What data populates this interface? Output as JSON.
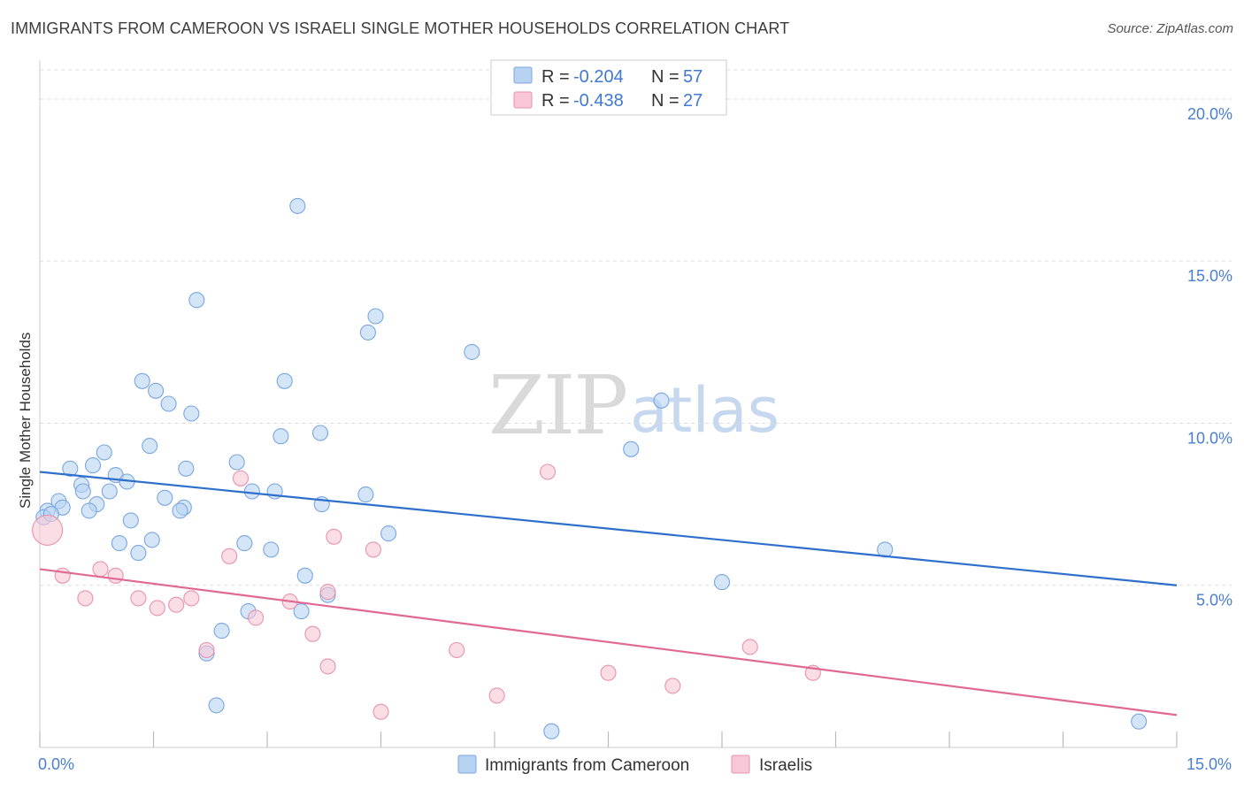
{
  "title": "IMMIGRANTS FROM CAMEROON VS ISRAELI SINGLE MOTHER HOUSEHOLDS CORRELATION CHART",
  "source": "Source: ZipAtlas.com",
  "watermark": {
    "part1": "ZIP",
    "part2": "atlas"
  },
  "legend": {
    "rows": [
      {
        "r_label": "R =",
        "r_value": "-0.204",
        "n_label": "N =",
        "n_value": "57"
      },
      {
        "r_label": "R =",
        "r_value": "-0.438",
        "n_label": "N =",
        "n_value": "27"
      }
    ]
  },
  "colors": {
    "blue_fill": "#b8d3f2",
    "blue_stroke": "#7aa6e0",
    "blue_line": "#2f6fcc",
    "pink_fill": "#f8c6d6",
    "pink_stroke": "#e693ae",
    "pink_line": "#e06893",
    "tick_text": "#4a7fd0",
    "grid": "#dddddd"
  },
  "chart_data": {
    "type": "scatter",
    "title": "IMMIGRANTS FROM CAMEROON VS ISRAELI SINGLE MOTHER HOUSEHOLDS CORRELATION CHART",
    "xlabel": "",
    "ylabel": "Single Mother Households",
    "x_ticks": [
      "0.0%",
      "15.0%"
    ],
    "y_ticks": [
      "5.0%",
      "10.0%",
      "15.0%",
      "20.0%"
    ],
    "xlim": [
      0,
      15
    ],
    "ylim": [
      0,
      20
    ],
    "grid": "horizontal dashed",
    "legend_position": "top-center",
    "series": [
      {
        "name": "Immigrants from Cameroon",
        "color": "#b8d3f2",
        "R": -0.204,
        "N": 57,
        "trend": {
          "x": [
            0,
            15
          ],
          "y": [
            8.5,
            5.0
          ]
        },
        "points": [
          [
            3.4,
            16.7
          ],
          [
            2.07,
            13.8
          ],
          [
            4.43,
            13.3
          ],
          [
            4.33,
            12.8
          ],
          [
            5.7,
            12.2
          ],
          [
            1.35,
            11.3
          ],
          [
            3.23,
            11.3
          ],
          [
            1.53,
            11.0
          ],
          [
            1.7,
            10.6
          ],
          [
            2.0,
            10.3
          ],
          [
            8.2,
            10.7
          ],
          [
            3.7,
            9.7
          ],
          [
            3.18,
            9.6
          ],
          [
            1.45,
            9.3
          ],
          [
            0.85,
            9.1
          ],
          [
            7.8,
            9.2
          ],
          [
            2.6,
            8.8
          ],
          [
            1.93,
            8.6
          ],
          [
            0.7,
            8.7
          ],
          [
            0.4,
            8.6
          ],
          [
            1.0,
            8.4
          ],
          [
            1.15,
            8.2
          ],
          [
            0.55,
            8.1
          ],
          [
            0.57,
            7.9
          ],
          [
            0.92,
            7.9
          ],
          [
            2.8,
            7.9
          ],
          [
            3.1,
            7.9
          ],
          [
            1.65,
            7.7
          ],
          [
            4.3,
            7.8
          ],
          [
            0.25,
            7.6
          ],
          [
            0.75,
            7.5
          ],
          [
            3.72,
            7.5
          ],
          [
            1.9,
            7.4
          ],
          [
            1.85,
            7.3
          ],
          [
            0.3,
            7.4
          ],
          [
            0.65,
            7.3
          ],
          [
            0.1,
            7.3
          ],
          [
            0.05,
            7.1
          ],
          [
            1.2,
            7.0
          ],
          [
            4.6,
            6.6
          ],
          [
            1.48,
            6.4
          ],
          [
            1.05,
            6.3
          ],
          [
            2.7,
            6.3
          ],
          [
            3.05,
            6.1
          ],
          [
            1.3,
            6.0
          ],
          [
            11.15,
            6.1
          ],
          [
            3.5,
            5.3
          ],
          [
            9.0,
            5.1
          ],
          [
            3.8,
            4.7
          ],
          [
            2.75,
            4.2
          ],
          [
            3.45,
            4.2
          ],
          [
            2.4,
            3.6
          ],
          [
            2.2,
            2.9
          ],
          [
            2.33,
            1.3
          ],
          [
            6.75,
            0.5
          ],
          [
            14.5,
            0.8
          ],
          [
            0.15,
            7.2
          ]
        ]
      },
      {
        "name": "Israelis",
        "color": "#f8c6d6",
        "R": -0.438,
        "N": 27,
        "trend": {
          "x": [
            0,
            15
          ],
          "y": [
            5.5,
            1.0
          ]
        },
        "points": [
          [
            0.1,
            6.7
          ],
          [
            2.65,
            8.3
          ],
          [
            6.7,
            8.5
          ],
          [
            3.88,
            6.5
          ],
          [
            4.4,
            6.1
          ],
          [
            2.5,
            5.9
          ],
          [
            0.8,
            5.5
          ],
          [
            0.3,
            5.3
          ],
          [
            1.0,
            5.3
          ],
          [
            3.8,
            4.8
          ],
          [
            0.6,
            4.6
          ],
          [
            1.3,
            4.6
          ],
          [
            2.0,
            4.6
          ],
          [
            3.3,
            4.5
          ],
          [
            1.8,
            4.4
          ],
          [
            1.55,
            4.3
          ],
          [
            2.85,
            4.0
          ],
          [
            3.6,
            3.5
          ],
          [
            9.37,
            3.1
          ],
          [
            2.2,
            3.0
          ],
          [
            5.5,
            3.0
          ],
          [
            3.8,
            2.5
          ],
          [
            10.2,
            2.3
          ],
          [
            7.5,
            2.3
          ],
          [
            8.35,
            1.9
          ],
          [
            6.03,
            1.6
          ],
          [
            4.5,
            1.1
          ]
        ]
      }
    ]
  },
  "bottom_legend": {
    "items": [
      {
        "label": "Immigrants from Cameroon"
      },
      {
        "label": "Israelis"
      }
    ]
  }
}
